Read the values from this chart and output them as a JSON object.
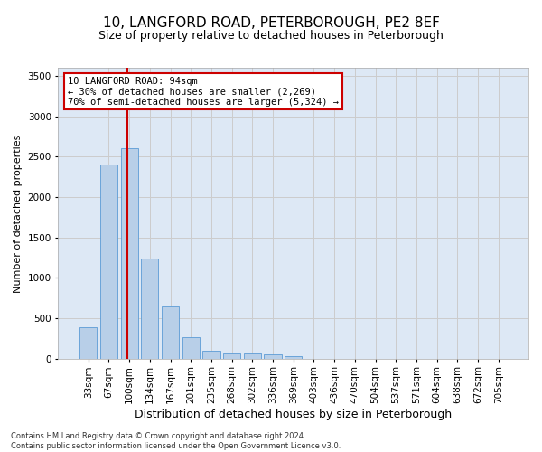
{
  "title": "10, LANGFORD ROAD, PETERBOROUGH, PE2 8EF",
  "subtitle": "Size of property relative to detached houses in Peterborough",
  "xlabel": "Distribution of detached houses by size in Peterborough",
  "ylabel": "Number of detached properties",
  "categories": [
    "33sqm",
    "67sqm",
    "100sqm",
    "134sqm",
    "167sqm",
    "201sqm",
    "235sqm",
    "268sqm",
    "302sqm",
    "336sqm",
    "369sqm",
    "403sqm",
    "436sqm",
    "470sqm",
    "504sqm",
    "537sqm",
    "571sqm",
    "604sqm",
    "638sqm",
    "672sqm",
    "705sqm"
  ],
  "values": [
    390,
    2400,
    2600,
    1240,
    640,
    260,
    100,
    60,
    60,
    50,
    30,
    0,
    0,
    0,
    0,
    0,
    0,
    0,
    0,
    0,
    0
  ],
  "bar_color": "#b8cfe8",
  "bar_edge_color": "#5b9bd5",
  "bar_width": 0.85,
  "vline_color": "#cc0000",
  "annotation_text": "10 LANGFORD ROAD: 94sqm\n← 30% of detached houses are smaller (2,269)\n70% of semi-detached houses are larger (5,324) →",
  "annotation_box_color": "#cc0000",
  "ylim": [
    0,
    3600
  ],
  "yticks": [
    0,
    500,
    1000,
    1500,
    2000,
    2500,
    3000,
    3500
  ],
  "grid_color": "#cccccc",
  "bg_color": "#dde8f5",
  "footnote": "Contains HM Land Registry data © Crown copyright and database right 2024.\nContains public sector information licensed under the Open Government Licence v3.0.",
  "title_fontsize": 11,
  "subtitle_fontsize": 9,
  "xlabel_fontsize": 9,
  "ylabel_fontsize": 8,
  "tick_fontsize": 7.5,
  "annot_fontsize": 7.5
}
